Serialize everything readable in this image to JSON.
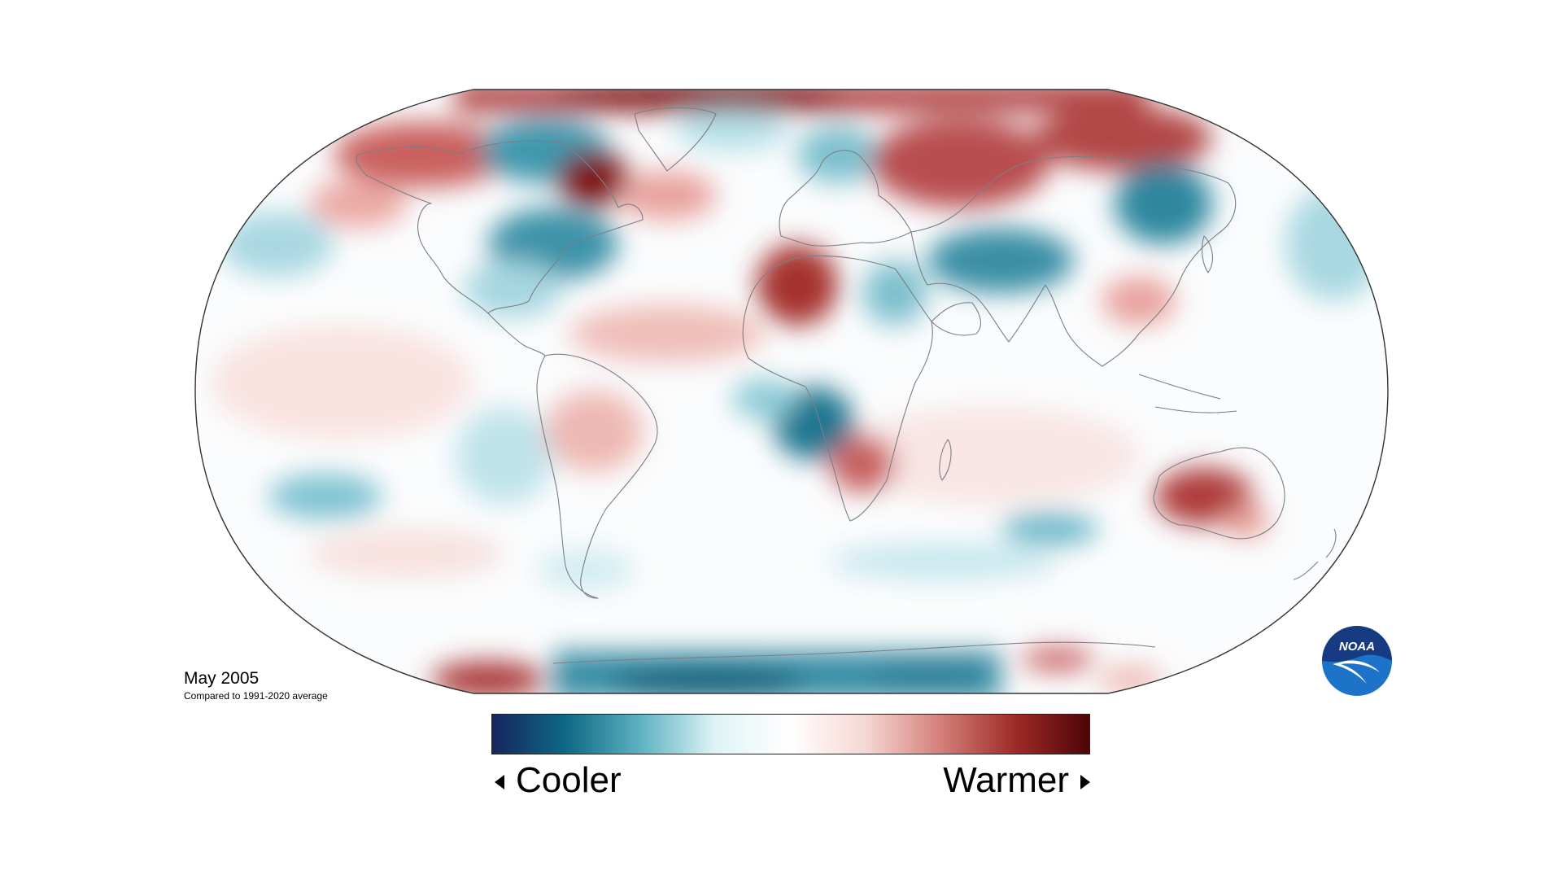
{
  "map": {
    "projection": "Robinson",
    "title": "May 2005",
    "subtitle": "Compared to 1991-2020 average",
    "logo_text": "NOAA"
  },
  "legend": {
    "left_label": "Cooler",
    "right_label": "Warmer",
    "colors": [
      "#16255e",
      "#0e6a86",
      "#5fb3c2",
      "#dff4f6",
      "#ffffff",
      "#f6d7d3",
      "#d4807a",
      "#9f2b28",
      "#4d0508"
    ]
  },
  "colors": {
    "cool_strong": "#0d5f79",
    "cool_mid": "#4ea7b9",
    "cool_light": "#c9ebef",
    "warm_strong": "#7a1416",
    "warm_mid": "#c8595a",
    "warm_light": "#f3c8c4",
    "logo_blue": "#1c73c7",
    "logo_navy": "#163b82"
  },
  "anomaly_regions": [
    {
      "region": "Alaska and northwest Canada",
      "sign": "warm",
      "strength": 0.6
    },
    {
      "region": "Hudson Bay region",
      "sign": "warm",
      "strength": 1.0
    },
    {
      "region": "Canadian Arctic Archipelago",
      "sign": "cool",
      "strength": 0.7
    },
    {
      "region": "Eastern United States",
      "sign": "cool",
      "strength": 0.7
    },
    {
      "region": "Arctic Ocean north of Eurasia",
      "sign": "warm",
      "strength": 0.8
    },
    {
      "region": "Western Russia",
      "sign": "warm",
      "strength": 0.8
    },
    {
      "region": "Northern Siberia",
      "sign": "warm",
      "strength": 0.8
    },
    {
      "region": "Scandinavia",
      "sign": "cool",
      "strength": 0.4
    },
    {
      "region": "Northern Africa (west Sahara)",
      "sign": "warm",
      "strength": 0.8
    },
    {
      "region": "Central Asia / Iran",
      "sign": "cool",
      "strength": 0.7
    },
    {
      "region": "Northeast China / Mongolia",
      "sign": "cool",
      "strength": 0.7
    },
    {
      "region": "Southern China",
      "sign": "warm",
      "strength": 0.4
    },
    {
      "region": "Equatorial Atlantic",
      "sign": "warm",
      "strength": 0.5
    },
    {
      "region": "Gulf of Guinea / west of southern Africa",
      "sign": "cool",
      "strength": 0.7
    },
    {
      "region": "Southern Africa",
      "sign": "warm",
      "strength": 0.6
    },
    {
      "region": "Brazil",
      "sign": "warm",
      "strength": 0.4
    },
    {
      "region": "Australia",
      "sign": "warm",
      "strength": 0.8
    },
    {
      "region": "South Pacific",
      "sign": "cool",
      "strength": 0.4
    },
    {
      "region": "Southern Indian Ocean",
      "sign": "cool",
      "strength": 0.4
    },
    {
      "region": "Antarctica (Pacific sector)",
      "sign": "cool",
      "strength": 0.9
    },
    {
      "region": "Antarctica (Antarctic Peninsula side)",
      "sign": "warm",
      "strength": 0.8
    }
  ]
}
